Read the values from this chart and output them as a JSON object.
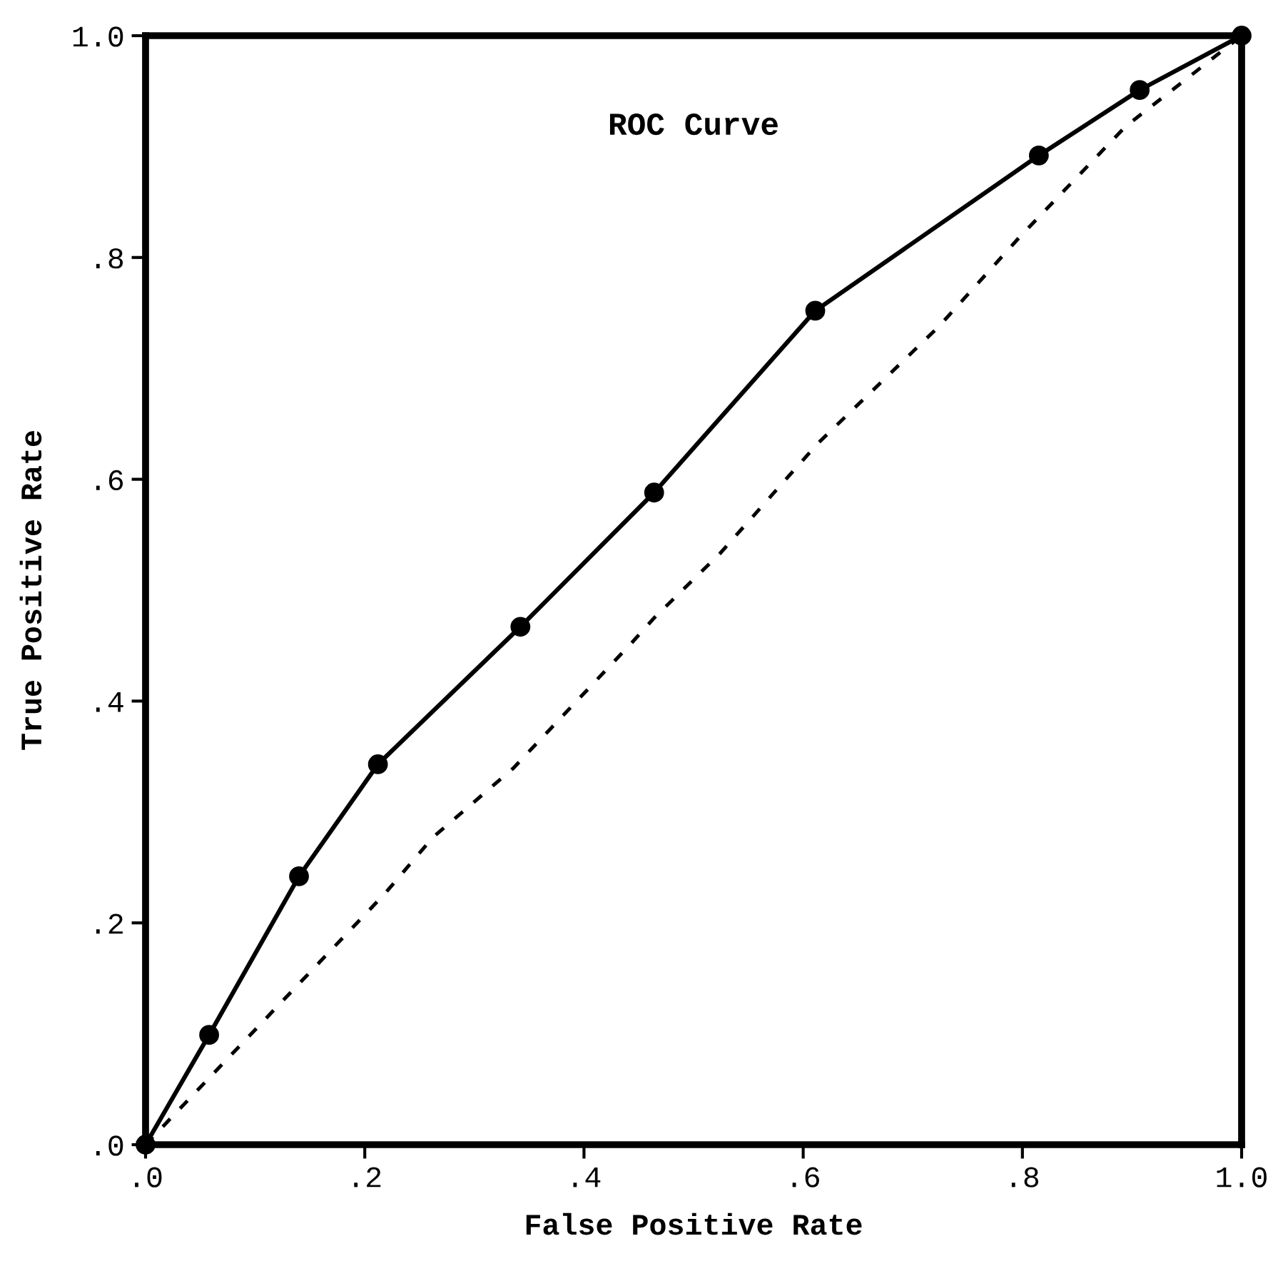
{
  "chart_data": {
    "type": "line",
    "title": "ROC Curve",
    "xlabel": "False Positive Rate",
    "ylabel": "True Positive Rate",
    "xlim": [
      0,
      1
    ],
    "ylim": [
      0,
      1
    ],
    "xticks": [
      {
        "value": 0,
        "label": ".0"
      },
      {
        "value": 0.2,
        "label": ".2"
      },
      {
        "value": 0.4,
        "label": ".4"
      },
      {
        "value": 0.6,
        "label": ".6"
      },
      {
        "value": 0.8,
        "label": ".8"
      },
      {
        "value": 1,
        "label": "1.0"
      }
    ],
    "yticks": [
      {
        "value": 0,
        "label": ".0"
      },
      {
        "value": 0.2,
        "label": ".2"
      },
      {
        "value": 0.4,
        "label": ".4"
      },
      {
        "value": 0.6,
        "label": ".6"
      },
      {
        "value": 0.8,
        "label": ".8"
      },
      {
        "value": 1,
        "label": "1.0"
      }
    ],
    "grid": false,
    "legend": false,
    "series": [
      {
        "color": "#000000",
        "marker": "circle",
        "line_style": "solid",
        "x": [
          0,
          0.058,
          0.14,
          0.212,
          0.342,
          0.464,
          0.611,
          0.815,
          0.907,
          1.0
        ],
        "values": [
          0,
          0.099,
          0.242,
          0.343,
          0.467,
          0.588,
          0.752,
          0.892,
          0.951,
          1.0
        ]
      },
      {
        "color": "#000000",
        "marker": "none",
        "line_style": "dashed",
        "x": [
          0,
          0.218,
          0.262,
          0.335,
          0.444,
          0.464,
          0.524,
          0.613,
          0.724,
          0.798,
          0.894,
          1.0
        ],
        "values": [
          0,
          0.226,
          0.277,
          0.339,
          0.453,
          0.475,
          0.533,
          0.632,
          0.738,
          0.819,
          0.918,
          1.0
        ]
      }
    ]
  }
}
